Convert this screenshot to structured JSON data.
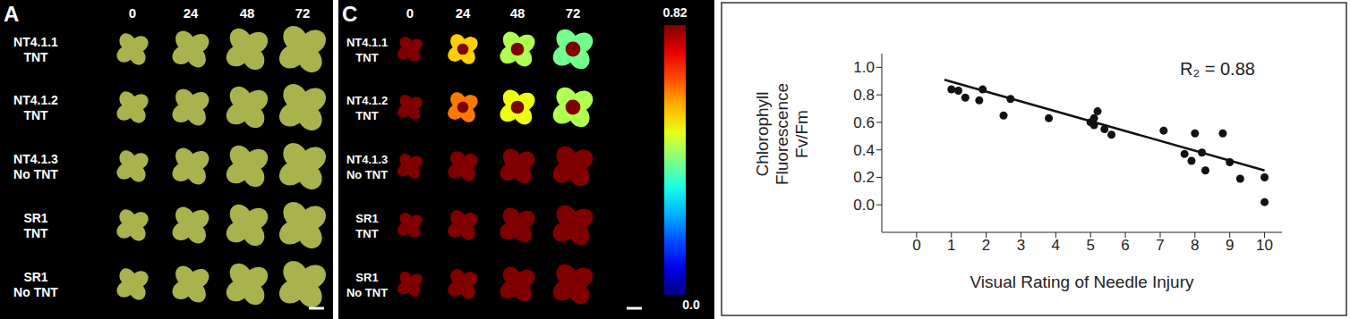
{
  "images": {
    "times": [
      0,
      24,
      48,
      72
    ],
    "rows": [
      {
        "label": [
          "NT4.1.1",
          "TNT"
        ],
        "fv_fm": [
          0.82,
          0.55,
          0.45,
          0.4
        ]
      },
      {
        "label": [
          "NT4.1.2",
          "TNT"
        ],
        "fv_fm": [
          0.82,
          0.62,
          0.5,
          0.45
        ]
      },
      {
        "label": [
          "NT4.1.3",
          "No TNT"
        ],
        "fv_fm": [
          0.82,
          0.82,
          0.82,
          0.82
        ]
      },
      {
        "label": [
          "SR1",
          "TNT"
        ],
        "fv_fm": [
          0.82,
          0.82,
          0.82,
          0.82
        ]
      },
      {
        "label": [
          "SR1",
          "No TNT"
        ],
        "fv_fm": [
          0.82,
          0.82,
          0.82,
          0.82
        ]
      }
    ],
    "panels": [
      {
        "letter": "A"
      },
      {
        "letter": "C",
        "colorbar": {
          "range": [
            0,
            0.82
          ],
          "ticks": [
            0.82,
            {
              "value": 0,
              "label": "0.0"
            }
          ]
        }
      }
    ]
  },
  "chart_data": {
    "type": "scatter",
    "x_label": "Visual Rating of Needle Injury",
    "y_label": [
      "Chlorophyll",
      "Fluorescence",
      "Fv/Fm"
    ],
    "annotation": "R₂ = 0.88",
    "x": [
      1.0,
      1.2,
      1.4,
      1.8,
      1.9,
      2.5,
      2.7,
      3.8,
      5.0,
      5.1,
      5.2,
      5.1,
      5.4,
      5.6,
      7.1,
      7.7,
      7.9,
      8.0,
      8.2,
      8.3,
      8.8,
      9.0,
      9.3,
      10.0,
      10.0
    ],
    "y": [
      0.84,
      0.83,
      0.78,
      0.76,
      0.84,
      0.65,
      0.77,
      0.63,
      0.6,
      0.63,
      0.68,
      0.58,
      0.55,
      0.51,
      0.54,
      0.37,
      0.32,
      0.52,
      0.38,
      0.25,
      0.52,
      0.31,
      0.19,
      0.2,
      0.02
    ],
    "color": "#111111",
    "marker": "circle",
    "trend_line": {
      "x": [
        0.8,
        10
      ],
      "y": [
        0.91,
        0.25
      ],
      "color": "#111111",
      "line_style": "solid"
    },
    "xlim": [
      -1,
      10.5
    ],
    "xticks": [
      0,
      1,
      2,
      3,
      4,
      5,
      6,
      7,
      8,
      9,
      10
    ],
    "ylim": [
      -0.2,
      1.1
    ],
    "yticks": [
      {
        "value": 0,
        "label": "0.0"
      },
      {
        "value": 0.2,
        "label": "0.2"
      },
      {
        "value": 0.4,
        "label": "0.4"
      },
      {
        "value": 0.6,
        "label": "0.6"
      },
      {
        "value": 0.8,
        "label": "0.8"
      },
      {
        "value": 1,
        "label": "1.0"
      }
    ],
    "grid": false,
    "legend": false
  }
}
